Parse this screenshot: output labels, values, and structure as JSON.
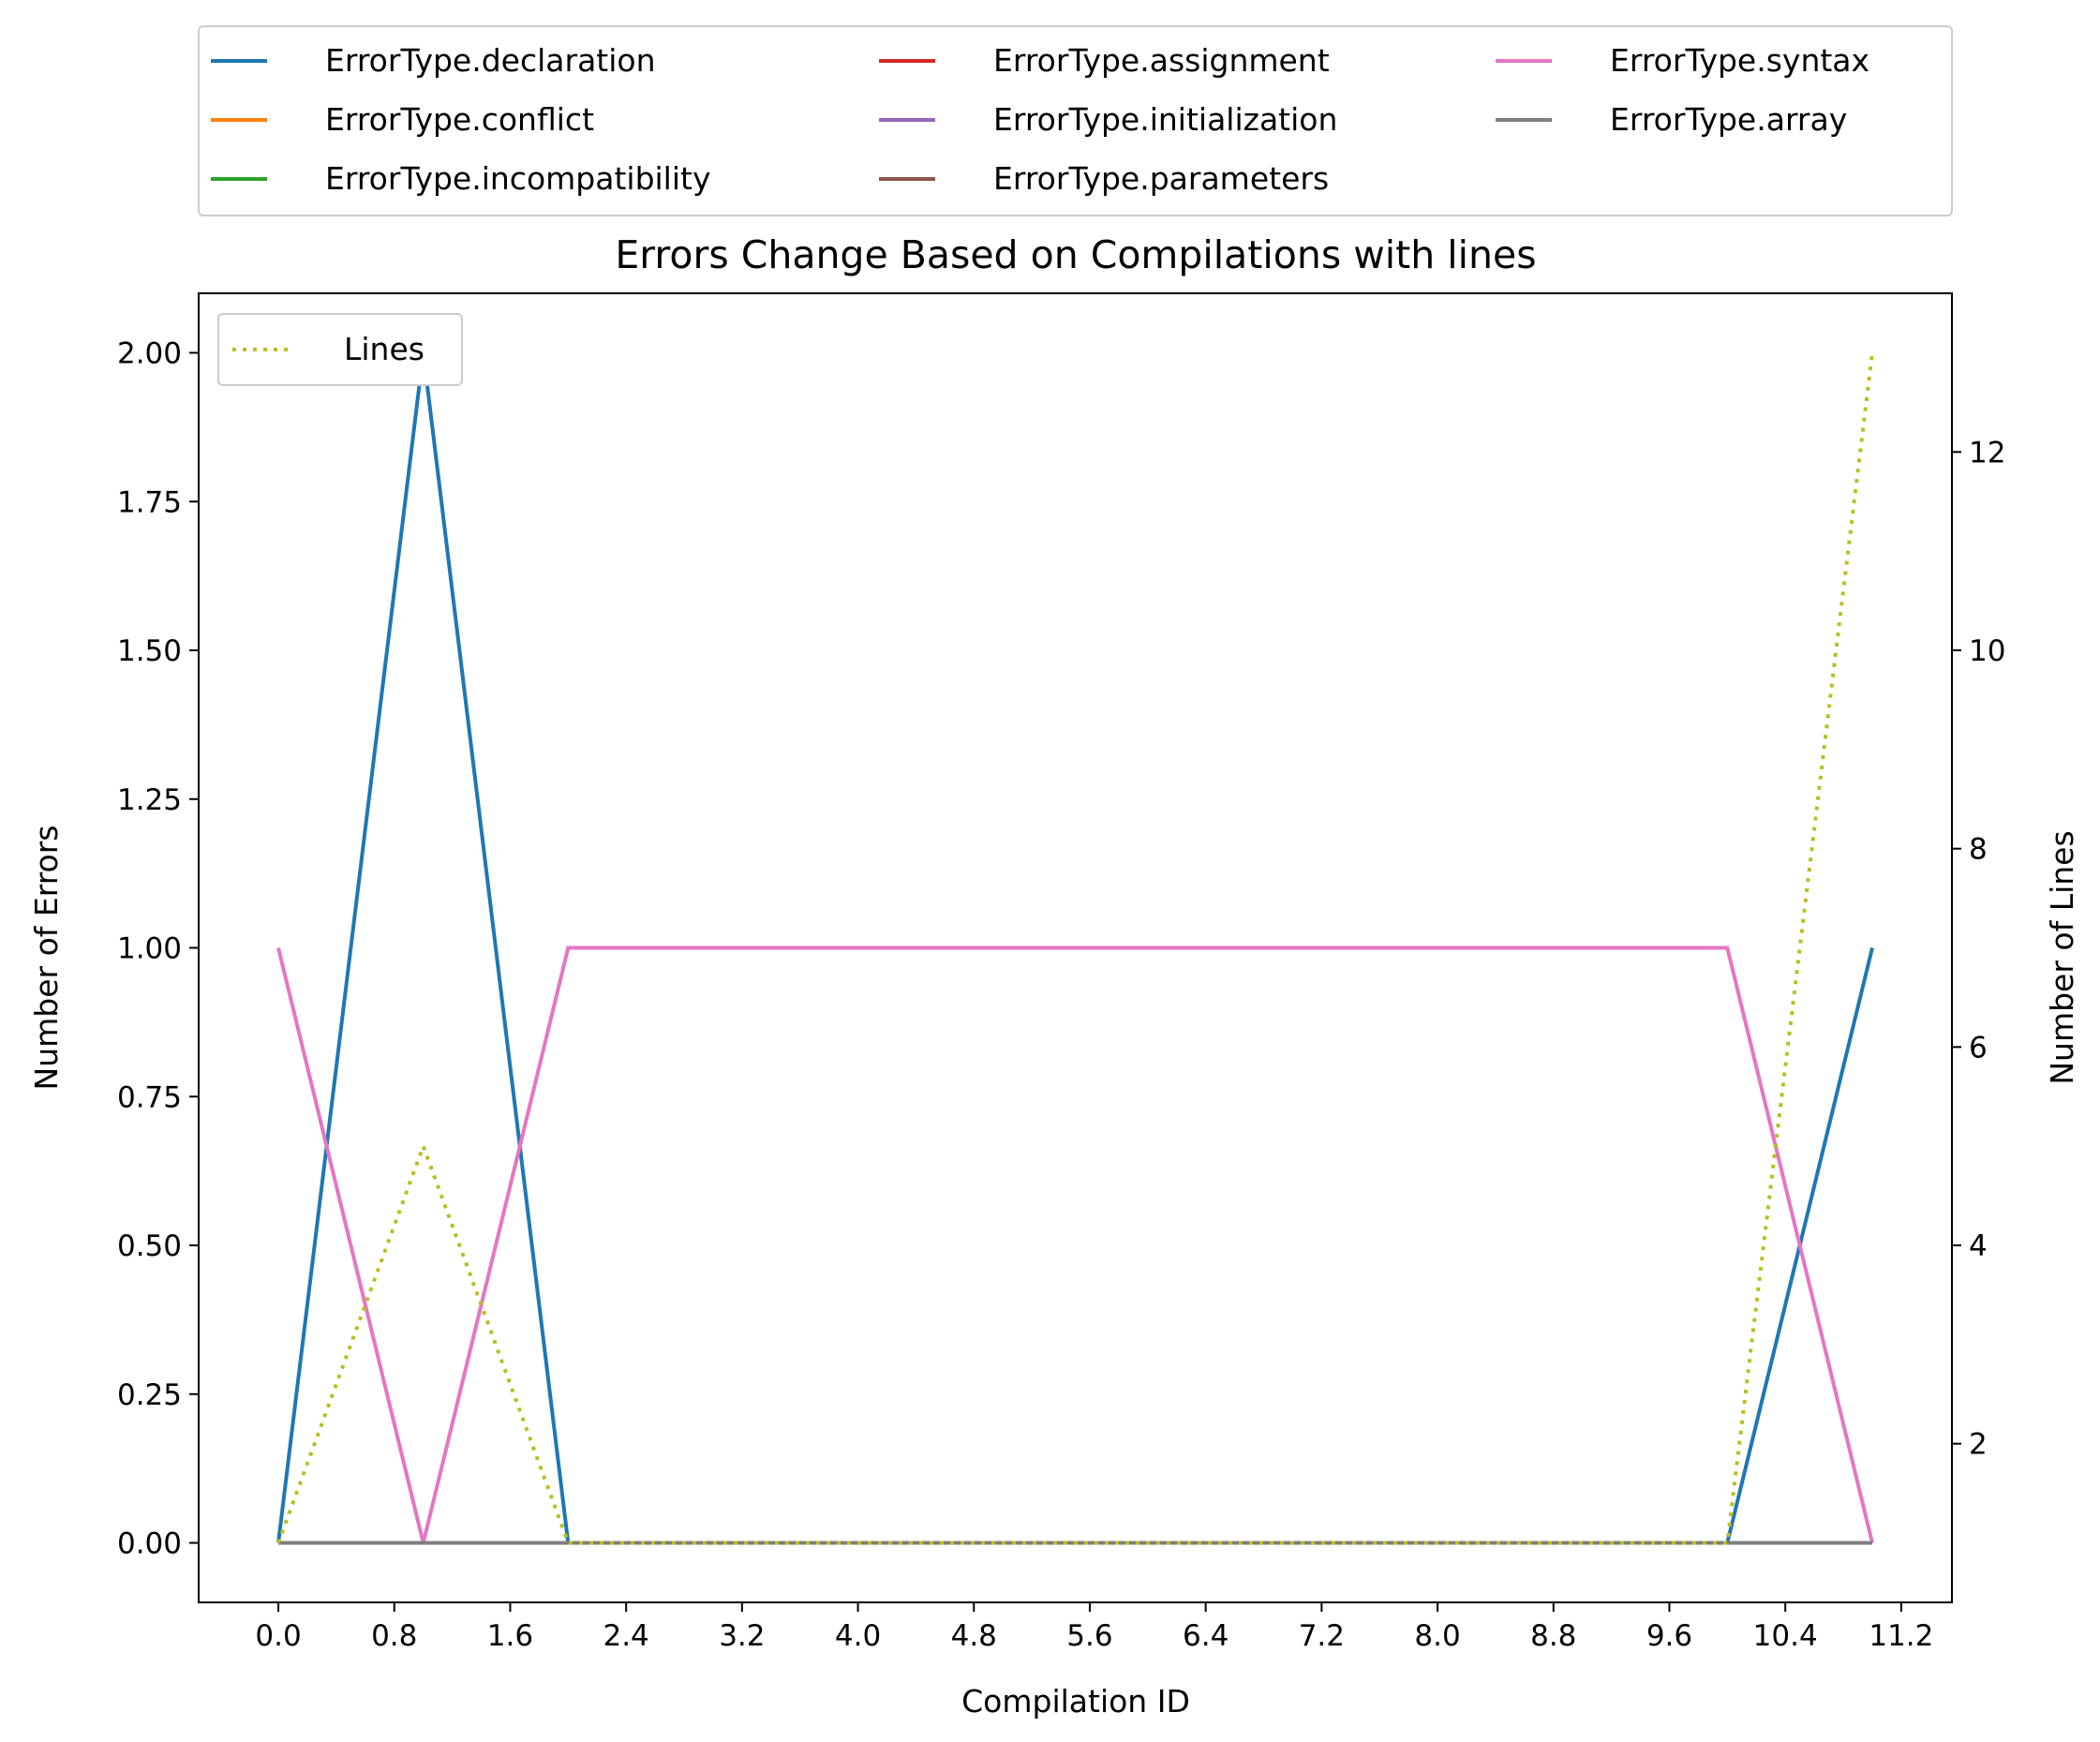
{
  "chart_data": {
    "type": "line",
    "title": "Errors Change Based on Compilations with lines",
    "xlabel": "Compilation ID",
    "ylabel": "Number of Errors",
    "ylabel_right": "Number of Lines",
    "x": [
      0,
      1,
      2,
      3,
      4,
      5,
      6,
      7,
      8,
      9,
      10,
      11
    ],
    "xlim": [
      -0.55,
      11.55
    ],
    "ylim": [
      -0.1,
      2.1
    ],
    "ylim_right": [
      0.4,
      13.6
    ],
    "x_ticks": [
      "0.0",
      "0.8",
      "1.6",
      "2.4",
      "3.2",
      "4.0",
      "4.8",
      "5.6",
      "6.4",
      "7.2",
      "8.0",
      "8.8",
      "9.6",
      "10.4",
      "11.2"
    ],
    "y_ticks": [
      "0.00",
      "0.25",
      "0.50",
      "0.75",
      "1.00",
      "1.25",
      "1.50",
      "1.75",
      "2.00"
    ],
    "y_ticks_right": [
      "2",
      "4",
      "6",
      "8",
      "10",
      "12"
    ],
    "grid": false,
    "legend_placement": "above plot, 3 columns",
    "series": [
      {
        "name": "ErrorType.declaration",
        "color": "#1f77b4",
        "values": [
          0,
          2,
          0,
          0,
          0,
          0,
          0,
          0,
          0,
          0,
          0,
          1
        ]
      },
      {
        "name": "ErrorType.conflict",
        "color": "#ff7f0e",
        "values": [
          0,
          0,
          0,
          0,
          0,
          0,
          0,
          0,
          0,
          0,
          0,
          0
        ]
      },
      {
        "name": "ErrorType.incompatibility",
        "color": "#2ca02c",
        "values": [
          0,
          0,
          0,
          0,
          0,
          0,
          0,
          0,
          0,
          0,
          0,
          0
        ]
      },
      {
        "name": "ErrorType.assignment",
        "color": "#d62728",
        "values": [
          0,
          0,
          0,
          0,
          0,
          0,
          0,
          0,
          0,
          0,
          0,
          0
        ]
      },
      {
        "name": "ErrorType.initialization",
        "color": "#9467bd",
        "values": [
          0,
          0,
          0,
          0,
          0,
          0,
          0,
          0,
          0,
          0,
          0,
          0
        ]
      },
      {
        "name": "ErrorType.parameters",
        "color": "#8c564b",
        "values": [
          0,
          0,
          0,
          0,
          0,
          0,
          0,
          0,
          0,
          0,
          0,
          0
        ]
      },
      {
        "name": "ErrorType.syntax",
        "color": "#e377c2",
        "values": [
          1,
          0,
          1,
          1,
          1,
          1,
          1,
          1,
          1,
          1,
          1,
          0
        ]
      },
      {
        "name": "ErrorType.array",
        "color": "#7f7f7f",
        "values": [
          0,
          0,
          0,
          0,
          0,
          0,
          0,
          0,
          0,
          0,
          0,
          0
        ]
      }
    ],
    "lines_series": {
      "name": "Lines",
      "color": "#bcbd22",
      "style": "dotted",
      "axis": "right",
      "values": [
        1,
        5,
        1,
        1,
        1,
        1,
        1,
        1,
        1,
        1,
        1,
        13
      ]
    },
    "lines_legend_placement": "upper-left"
  }
}
